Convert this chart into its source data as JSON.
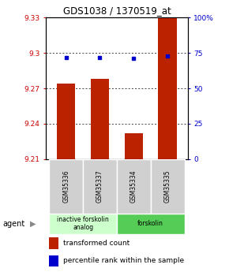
{
  "title": "GDS1038 / 1370519_at",
  "samples": [
    "GSM35336",
    "GSM35337",
    "GSM35334",
    "GSM35335"
  ],
  "bar_values": [
    9.274,
    9.278,
    9.232,
    9.33
  ],
  "percentile_values": [
    72,
    72,
    71,
    73
  ],
  "ymin": 9.21,
  "ymax": 9.33,
  "yticks": [
    9.21,
    9.24,
    9.27,
    9.3,
    9.33
  ],
  "ytick_labels": [
    "9.21",
    "9.24",
    "9.27",
    "9.3",
    "9.33"
  ],
  "right_yticks": [
    0,
    25,
    50,
    75,
    100
  ],
  "right_ytick_labels": [
    "0",
    "25",
    "50",
    "75",
    "100%"
  ],
  "bar_color": "#bb2200",
  "dot_color": "#0000cc",
  "groups": [
    {
      "label": "inactive forskolin\nanalog",
      "color": "#ccffcc",
      "samples": [
        0,
        1
      ]
    },
    {
      "label": "forskolin",
      "color": "#55cc55",
      "samples": [
        2,
        3
      ]
    }
  ],
  "agent_label": "agent",
  "legend_red_label": "transformed count",
  "legend_blue_label": "percentile rank within the sample",
  "bar_width": 0.55,
  "left_tick_color": "#cc0000",
  "right_tick_color": "#0000cc",
  "title_fontsize": 8.5,
  "tick_fontsize": 6.5,
  "sample_fontsize": 5.5,
  "legend_fontsize": 6.5,
  "group_label_fontsize": 5.5
}
